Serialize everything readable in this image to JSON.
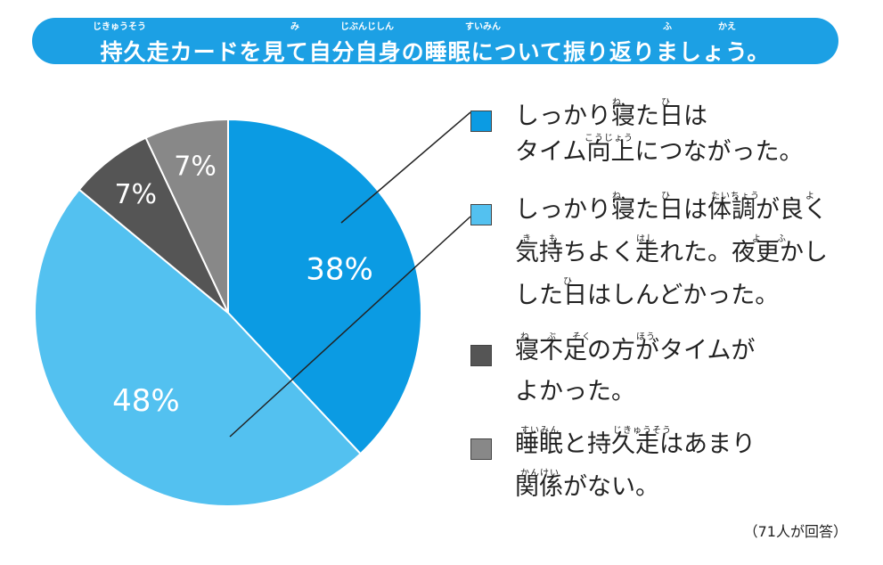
{
  "title": {
    "text": "持久走カードを見て自分自身の睡眠について振り返りましょう。",
    "ruby": [
      "じきゅうそう",
      "み",
      "じぶんじしん",
      "すいみん",
      "ふ",
      "かえ"
    ]
  },
  "chart_data": {
    "type": "pie",
    "categories": [
      "しっかり寝た日はタイム向上につながった。",
      "しっかり寝た日は体調が良く気持ちよく走れた。夜更かしした日はしんどかった。",
      "寝不足の方がタイムがよかった。",
      "睡眠と持久走はあまり関係がない。"
    ],
    "values": [
      38,
      48,
      7,
      7
    ],
    "labels": [
      "38%",
      "48%",
      "7%",
      "7%"
    ],
    "colors": [
      "#0b9be3",
      "#53c1f0",
      "#555555",
      "#888888"
    ]
  },
  "legend": [
    {
      "color": "#0b9be3",
      "lines": [
        "しっかり寝た日は",
        "タイム向上につながった。"
      ],
      "ruby": [
        [
          "ね",
          "ひ"
        ],
        [
          "こうじょう"
        ]
      ]
    },
    {
      "color": "#53c1f0",
      "lines": [
        "しっかり寝た日は体調が良く",
        "気持ちよく走れた。夜更かし",
        "した日はしんどかった。"
      ],
      "ruby": [
        [
          "ね",
          "ひ",
          "たいちょう",
          "よ"
        ],
        [
          "き",
          "も",
          "はし",
          "よ",
          "ふ"
        ],
        [
          "ひ"
        ]
      ]
    },
    {
      "color": "#555555",
      "lines": [
        "寝不足の方がタイムが",
        "よかった。"
      ],
      "ruby": [
        [
          "ね",
          "ぶ",
          "そく",
          "ほう"
        ],
        []
      ]
    },
    {
      "color": "#888888",
      "lines": [
        "睡眠と持久走はあまり",
        "関係がない。"
      ],
      "ruby": [
        [
          "すいみん",
          "じきゅうそう"
        ],
        [
          "かんけい"
        ]
      ]
    }
  ],
  "note": "（71人が回答）"
}
